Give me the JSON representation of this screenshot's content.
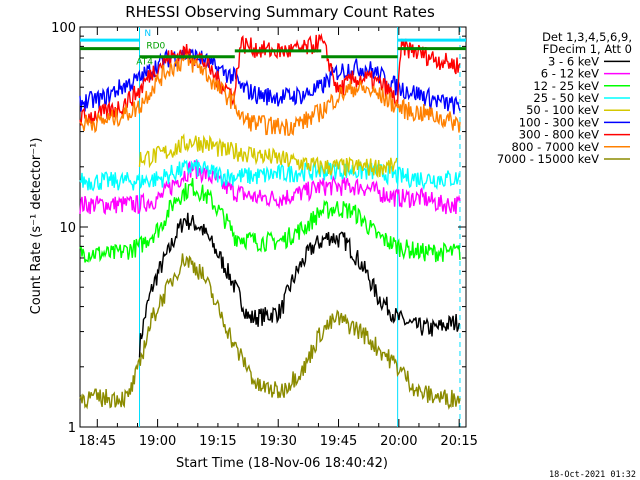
{
  "chart_data": {
    "type": "line",
    "title": "RHESSI Observing Summary Count Rates",
    "xlabel": "Start Time (18-Nov-06 18:40:42)",
    "ylabel": "Count Rate (s⁻¹ detector⁻¹)",
    "yscale": "log",
    "ylim": [
      1,
      100
    ],
    "xlim_minutes": [
      0,
      96
    ],
    "y_ticks": [
      "1",
      "10",
      "100"
    ],
    "x_ticks": [
      {
        "label": "18:45",
        "t": 4.3
      },
      {
        "label": "19:00",
        "t": 19.3
      },
      {
        "label": "19:15",
        "t": 34.3
      },
      {
        "label": "19:30",
        "t": 49.3
      },
      {
        "label": "19:45",
        "t": 64.3
      },
      {
        "label": "20:00",
        "t": 79.3
      },
      {
        "label": "20:15",
        "t": 94.3
      }
    ],
    "legend_header": [
      "Det 1,3,4,5,6,9,",
      "FDecim 1, Att 0"
    ],
    "legend_position": "right",
    "night_intervals": [
      [
        0,
        14.8
      ],
      [
        79.0,
        96
      ]
    ],
    "saa_markers": [
      14.8,
      94.5
    ],
    "flag_labels": [
      {
        "text": "N",
        "color": "#00c8ff",
        "t": 16.0,
        "y": 90
      },
      {
        "text": "RD0",
        "color": "#00a000",
        "t": 16.5,
        "y": 78
      },
      {
        "text": "AT4",
        "color": "#00a000",
        "t": 14.0,
        "y": 65
      }
    ],
    "flag_lines": [
      {
        "color": "#00e0ff",
        "y": 86,
        "segments": [
          [
            0,
            14.8
          ],
          [
            79.0,
            96
          ]
        ]
      },
      {
        "color": "#008800",
        "y": 78,
        "segments": [
          [
            0,
            14.8
          ],
          [
            79.0,
            96
          ]
        ]
      },
      {
        "color": "#008800",
        "y": 71,
        "segments": [
          [
            14.8,
            38.5
          ],
          [
            60.0,
            79.0
          ]
        ]
      },
      {
        "color": "#008800",
        "y": 76,
        "segments": [
          [
            38.5,
            60.0
          ]
        ]
      }
    ],
    "series": [
      {
        "name": "3 - 6 keV",
        "color": "#000000",
        "points": [
          [
            14.8,
            2.5
          ],
          [
            18,
            5
          ],
          [
            22,
            7.5
          ],
          [
            26,
            11
          ],
          [
            30,
            10
          ],
          [
            34,
            7.5
          ],
          [
            38.5,
            5
          ],
          [
            42,
            3.5
          ],
          [
            46,
            3.6
          ],
          [
            50,
            3.8
          ],
          [
            54,
            6
          ],
          [
            58,
            8
          ],
          [
            62,
            9
          ],
          [
            66,
            8.5
          ],
          [
            70,
            6.5
          ],
          [
            74,
            4.5
          ],
          [
            79,
            3.5
          ],
          [
            83,
            3.2
          ],
          [
            88,
            3.1
          ],
          [
            94.5,
            3.4
          ]
        ]
      },
      {
        "name": "6 - 12 keV",
        "color": "#ff00ff",
        "points": [
          [
            0,
            13
          ],
          [
            8,
            13
          ],
          [
            14.8,
            13
          ],
          [
            20,
            14
          ],
          [
            24,
            17
          ],
          [
            28,
            20
          ],
          [
            32,
            18
          ],
          [
            36,
            16
          ],
          [
            38.5,
            15
          ],
          [
            44,
            14
          ],
          [
            50,
            14
          ],
          [
            56,
            15
          ],
          [
            60,
            16
          ],
          [
            64,
            16
          ],
          [
            70,
            16
          ],
          [
            74,
            15
          ],
          [
            79,
            14
          ],
          [
            85,
            14
          ],
          [
            90,
            13
          ],
          [
            94.5,
            13
          ]
        ]
      },
      {
        "name": "12 - 25 keV",
        "color": "#00ff00",
        "points": [
          [
            0,
            7.5
          ],
          [
            8,
            7.3
          ],
          [
            14.8,
            8
          ],
          [
            20,
            10
          ],
          [
            24,
            14
          ],
          [
            28,
            16
          ],
          [
            32,
            14
          ],
          [
            36,
            11
          ],
          [
            38.5,
            9
          ],
          [
            44,
            8.5
          ],
          [
            50,
            8.5
          ],
          [
            56,
            10
          ],
          [
            60,
            12
          ],
          [
            64,
            12.5
          ],
          [
            68,
            12
          ],
          [
            74,
            9
          ],
          [
            79,
            8
          ],
          [
            85,
            7.5
          ],
          [
            90,
            7.5
          ],
          [
            94.5,
            7.5
          ]
        ]
      },
      {
        "name": "25 - 50 keV",
        "color": "#00ffff",
        "points": [
          [
            0,
            17
          ],
          [
            8,
            17
          ],
          [
            14.8,
            17
          ],
          [
            20,
            17.5
          ],
          [
            24,
            19
          ],
          [
            28,
            20
          ],
          [
            32,
            19
          ],
          [
            36,
            18
          ],
          [
            38.5,
            18
          ],
          [
            44,
            18
          ],
          [
            50,
            18.5
          ],
          [
            56,
            19
          ],
          [
            60,
            19
          ],
          [
            64,
            19.5
          ],
          [
            70,
            19
          ],
          [
            74,
            19
          ],
          [
            79,
            18
          ],
          [
            85,
            17.5
          ],
          [
            90,
            17.5
          ],
          [
            94.5,
            17.5
          ]
        ]
      },
      {
        "name": "50 - 100 keV",
        "color": "#d4c800",
        "points": [
          [
            14.8,
            22
          ],
          [
            20,
            23
          ],
          [
            24,
            25
          ],
          [
            28,
            27
          ],
          [
            32,
            26
          ],
          [
            36,
            24
          ],
          [
            38.5,
            24
          ],
          [
            60,
            20
          ],
          [
            64,
            20
          ],
          [
            70,
            20
          ],
          [
            74,
            20
          ],
          [
            79,
            20
          ]
        ]
      },
      {
        "name": "100 - 300 keV",
        "color": "#0000ff",
        "points": [
          [
            0,
            42
          ],
          [
            6,
            44
          ],
          [
            10,
            50
          ],
          [
            14.8,
            55
          ],
          [
            18,
            62
          ],
          [
            22,
            70
          ],
          [
            26,
            73
          ],
          [
            30,
            70
          ],
          [
            34,
            62
          ],
          [
            38.5,
            56
          ],
          [
            40,
            50
          ],
          [
            44,
            46
          ],
          [
            48,
            45
          ],
          [
            52,
            45
          ],
          [
            56,
            46
          ],
          [
            60,
            50
          ],
          [
            64,
            60
          ],
          [
            68,
            63
          ],
          [
            72,
            62
          ],
          [
            76,
            55
          ],
          [
            79,
            50
          ],
          [
            82,
            48
          ],
          [
            86,
            45
          ],
          [
            90,
            42
          ],
          [
            94.5,
            40
          ]
        ]
      },
      {
        "name": "300 - 800 keV",
        "color": "#ff0000",
        "points": [
          [
            0,
            35
          ],
          [
            6,
            37
          ],
          [
            10,
            40
          ],
          [
            14.8,
            48
          ],
          [
            18,
            60
          ],
          [
            22,
            70
          ],
          [
            26,
            75
          ],
          [
            30,
            70
          ],
          [
            34,
            55
          ],
          [
            38.5,
            45
          ],
          [
            40,
            83
          ],
          [
            44,
            78
          ],
          [
            48,
            76
          ],
          [
            52,
            76
          ],
          [
            56,
            78
          ],
          [
            60,
            85
          ],
          [
            64,
            48
          ],
          [
            68,
            55
          ],
          [
            72,
            55
          ],
          [
            76,
            50
          ],
          [
            79,
            42
          ],
          [
            80,
            80
          ],
          [
            84,
            75
          ],
          [
            88,
            70
          ],
          [
            92,
            66
          ],
          [
            94.5,
            64
          ]
        ]
      },
      {
        "name": "800 - 7000 keV",
        "color": "#ff8000",
        "points": [
          [
            0,
            33
          ],
          [
            6,
            34
          ],
          [
            10,
            36
          ],
          [
            14.8,
            40
          ],
          [
            18,
            50
          ],
          [
            22,
            62
          ],
          [
            26,
            68
          ],
          [
            30,
            63
          ],
          [
            34,
            50
          ],
          [
            38.5,
            42
          ],
          [
            40,
            35
          ],
          [
            44,
            33
          ],
          [
            48,
            32
          ],
          [
            52,
            32
          ],
          [
            56,
            34
          ],
          [
            60,
            38
          ],
          [
            64,
            45
          ],
          [
            68,
            50
          ],
          [
            72,
            48
          ],
          [
            76,
            44
          ],
          [
            79,
            40
          ],
          [
            82,
            38
          ],
          [
            86,
            37
          ],
          [
            90,
            35
          ],
          [
            94.5,
            33
          ]
        ]
      },
      {
        "name": "7000 - 15000 keV",
        "color": "#8b8b00",
        "points": [
          [
            0,
            1.4
          ],
          [
            6,
            1.4
          ],
          [
            12,
            1.4
          ],
          [
            14.8,
            2
          ],
          [
            18,
            3.5
          ],
          [
            22,
            5
          ],
          [
            26,
            7
          ],
          [
            30,
            6
          ],
          [
            34,
            4
          ],
          [
            38.5,
            2.5
          ],
          [
            44,
            1.6
          ],
          [
            50,
            1.5
          ],
          [
            56,
            2
          ],
          [
            60,
            3
          ],
          [
            64,
            3.5
          ],
          [
            70,
            3
          ],
          [
            74,
            2.5
          ],
          [
            79,
            2
          ],
          [
            84,
            1.5
          ],
          [
            90,
            1.4
          ],
          [
            94.5,
            1.4
          ]
        ]
      }
    ],
    "footer_timestamp": "18-Oct-2021 01:32"
  }
}
